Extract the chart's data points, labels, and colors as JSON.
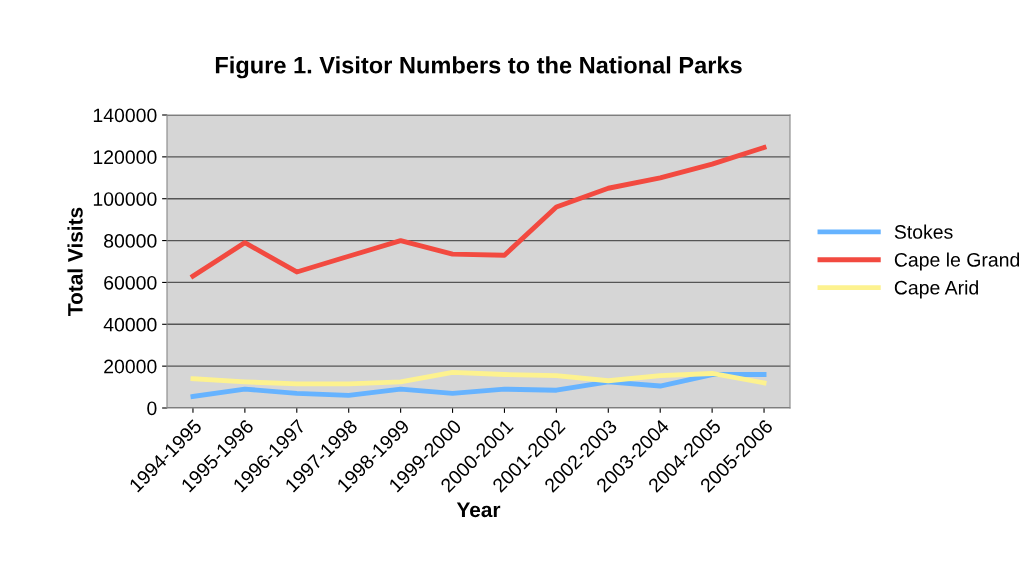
{
  "chart_data": {
    "type": "line",
    "title": "Figure 1. Visitor Numbers to the National Parks",
    "xlabel": "Year",
    "ylabel": "Total Visits",
    "categories": [
      "1994-1995",
      "1995-1996",
      "1996-1997",
      "1997-1998",
      "1998-1999",
      "1999-2000",
      "2000-2001",
      "2001-2002",
      "2002-2003",
      "2003-2004",
      "2004-2005",
      "2005-2006"
    ],
    "series": [
      {
        "name": "Stokes",
        "color": "#66b3ff",
        "values": [
          5500,
          9000,
          7000,
          6000,
          9000,
          7000,
          9000,
          8500,
          12500,
          10500,
          16000,
          16000
        ]
      },
      {
        "name": "Cape le Grand",
        "color": "#f24a40",
        "values": [
          63000,
          79000,
          65000,
          72500,
          80000,
          73500,
          73000,
          96000,
          105000,
          110000,
          116500,
          124500
        ]
      },
      {
        "name": "Cape Arid",
        "color": "#fdf28f",
        "values": [
          14000,
          12500,
          11500,
          11500,
          12500,
          17000,
          16000,
          15500,
          13000,
          15500,
          16500,
          12000
        ]
      }
    ],
    "ylim": [
      0,
      140000
    ],
    "yticks": [
      0,
      20000,
      40000,
      60000,
      80000,
      100000,
      120000,
      140000
    ],
    "grid": "y",
    "legend": "right",
    "marker": "none",
    "line_style": "solid"
  }
}
